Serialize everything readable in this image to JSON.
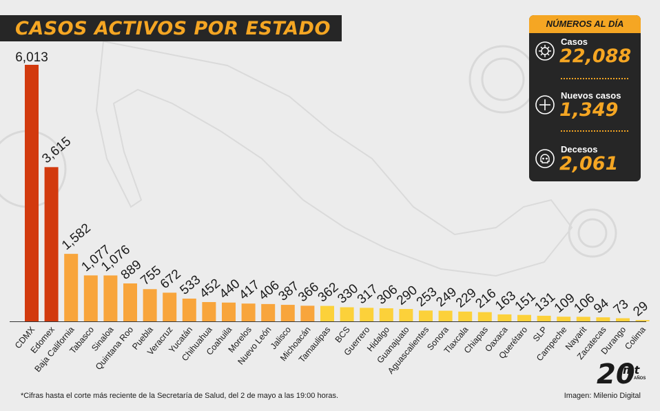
{
  "header": {
    "title": "CASOS ACTIVOS POR ESTADO"
  },
  "summary": {
    "title": "NÚMEROS AL DÍA",
    "items": [
      {
        "label": "Casos",
        "value": "22,088",
        "icon": "virus-icon"
      },
      {
        "label": "Nuevos casos",
        "value": "1,349",
        "icon": "plus-circle-icon"
      },
      {
        "label": "Decesos",
        "value": "2,061",
        "icon": "skull-icon"
      }
    ]
  },
  "footer": {
    "note": "*Cifras hasta el corte más reciente de la Secretaría de Salud, del 2 de mayo a las 19:00 horas.",
    "credit": "Imagen: Milenio Digital"
  },
  "logo": {
    "text": "20",
    "brand": "mt",
    "sub": "AÑOS"
  },
  "colors": {
    "bar_high": "#d23a0e",
    "bar_mid": "#f8a53c",
    "bar_low": "#fcd13a",
    "accent": "#f5a623",
    "dark": "#262626"
  },
  "chart_data": {
    "type": "bar",
    "categories": [
      "CDMX",
      "Edomex",
      "Baja California",
      "Tabasco",
      "Sinaloa",
      "Quintana Roo",
      "Puebla",
      "Veracruz",
      "Yucatán",
      "Chihuahua",
      "Coahuila",
      "Morelos",
      "Nuevo León",
      "Jalisco",
      "Michoacán",
      "Tamaulipas",
      "BCS",
      "Guerrero",
      "Hidalgo",
      "Guanajuato",
      "Aguascalientes",
      "Sonora",
      "Tlaxcala",
      "Chiapas",
      "Oaxaca",
      "Querétaro",
      "SLP",
      "Campeche",
      "Nayarit",
      "Zacatecas",
      "Durango",
      "Colima"
    ],
    "values": [
      6013,
      3615,
      1582,
      1077,
      1076,
      889,
      755,
      672,
      533,
      452,
      440,
      417,
      406,
      387,
      366,
      362,
      330,
      317,
      306,
      290,
      253,
      249,
      229,
      216,
      163,
      151,
      131,
      109,
      106,
      94,
      73,
      29
    ],
    "value_labels": [
      "6,013",
      "3,615",
      "1,582",
      "1,077",
      "1,076",
      "889",
      "755",
      "672",
      "533",
      "452",
      "440",
      "417",
      "406",
      "387",
      "366",
      "362",
      "330",
      "317",
      "306",
      "290",
      "253",
      "249",
      "229",
      "216",
      "163",
      "151",
      "131",
      "109",
      "106",
      "94",
      "73",
      "29"
    ],
    "title": "CASOS ACTIVOS POR ESTADO",
    "xlabel": "",
    "ylabel": "",
    "ylim": [
      0,
      6013
    ],
    "grid": false,
    "legend": "none"
  }
}
